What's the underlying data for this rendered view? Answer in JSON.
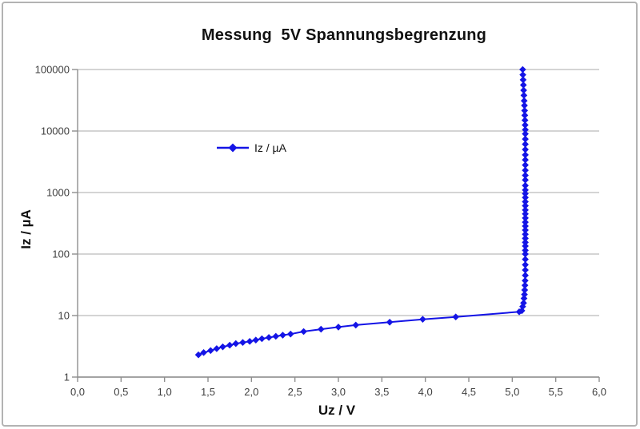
{
  "colors": {
    "series": "#1414e6",
    "grid": "#c6c6c6",
    "axis": "#8e8e8e",
    "tick_text": "#3f3f3f",
    "frame": "#b3b3b3",
    "title_text": "#111111"
  },
  "chart_data": {
    "type": "line",
    "title": "Messung  5V Spannungsbegrenzung",
    "xlabel": "Uz / V",
    "ylabel": "Iz / µA",
    "grid": "horizontal-only",
    "legend": {
      "position": "inside-upper-left",
      "entries": [
        "Iz / µA"
      ]
    },
    "x_axis": {
      "min": 0,
      "max": 6,
      "tick_step": 0.5,
      "tick_labels": [
        "0,0",
        "0,5",
        "1,0",
        "1,5",
        "2,0",
        "2,5",
        "3,0",
        "3,5",
        "4,0",
        "4,5",
        "5,0",
        "5,5",
        "6,0"
      ]
    },
    "y_axis": {
      "scale": "log",
      "min": 1,
      "max": 100000,
      "tick_labels": [
        "1",
        "10",
        "100",
        "1000",
        "10000",
        "100000"
      ]
    },
    "series": [
      {
        "name": "Iz / µA",
        "color": "#1414e6",
        "marker": "diamond",
        "points": [
          [
            1.39,
            2.3
          ],
          [
            1.45,
            2.5
          ],
          [
            1.53,
            2.7
          ],
          [
            1.6,
            2.9
          ],
          [
            1.67,
            3.1
          ],
          [
            1.75,
            3.3
          ],
          [
            1.82,
            3.5
          ],
          [
            1.9,
            3.65
          ],
          [
            1.98,
            3.8
          ],
          [
            2.05,
            4.0
          ],
          [
            2.12,
            4.2
          ],
          [
            2.2,
            4.4
          ],
          [
            2.28,
            4.6
          ],
          [
            2.36,
            4.8
          ],
          [
            2.45,
            5.0
          ],
          [
            2.6,
            5.5
          ],
          [
            2.8,
            6.0
          ],
          [
            3.0,
            6.5
          ],
          [
            3.2,
            7.0
          ],
          [
            3.59,
            7.8
          ],
          [
            3.97,
            8.7
          ],
          [
            4.35,
            9.5
          ],
          [
            5.08,
            11.5
          ],
          [
            5.11,
            12
          ],
          [
            5.12,
            14
          ],
          [
            5.13,
            16
          ],
          [
            5.135,
            19
          ],
          [
            5.14,
            22
          ],
          [
            5.143,
            26
          ],
          [
            5.146,
            31
          ],
          [
            5.148,
            37
          ],
          [
            5.15,
            45
          ],
          [
            5.15,
            55
          ],
          [
            5.15,
            67
          ],
          [
            5.15,
            82
          ],
          [
            5.15,
            100
          ],
          [
            5.15,
            115
          ],
          [
            5.15,
            135
          ],
          [
            5.15,
            155
          ],
          [
            5.15,
            180
          ],
          [
            5.15,
            210
          ],
          [
            5.15,
            245
          ],
          [
            5.15,
            285
          ],
          [
            5.15,
            330
          ],
          [
            5.15,
            385
          ],
          [
            5.15,
            450
          ],
          [
            5.15,
            520
          ],
          [
            5.15,
            610
          ],
          [
            5.15,
            710
          ],
          [
            5.15,
            830
          ],
          [
            5.15,
            960
          ],
          [
            5.15,
            1100
          ],
          [
            5.15,
            1300
          ],
          [
            5.15,
            1600
          ],
          [
            5.15,
            1900
          ],
          [
            5.15,
            2300
          ],
          [
            5.15,
            2800
          ],
          [
            5.15,
            3400
          ],
          [
            5.15,
            4100
          ],
          [
            5.15,
            5000
          ],
          [
            5.15,
            6100
          ],
          [
            5.15,
            7400
          ],
          [
            5.15,
            9000
          ],
          [
            5.15,
            10500
          ],
          [
            5.148,
            12500
          ],
          [
            5.146,
            15000
          ],
          [
            5.144,
            18000
          ],
          [
            5.142,
            21500
          ],
          [
            5.14,
            26000
          ],
          [
            5.137,
            31000
          ],
          [
            5.134,
            38000
          ],
          [
            5.131,
            46000
          ],
          [
            5.128,
            56000
          ],
          [
            5.125,
            68000
          ],
          [
            5.122,
            82000
          ],
          [
            5.12,
            100000
          ]
        ]
      }
    ]
  }
}
